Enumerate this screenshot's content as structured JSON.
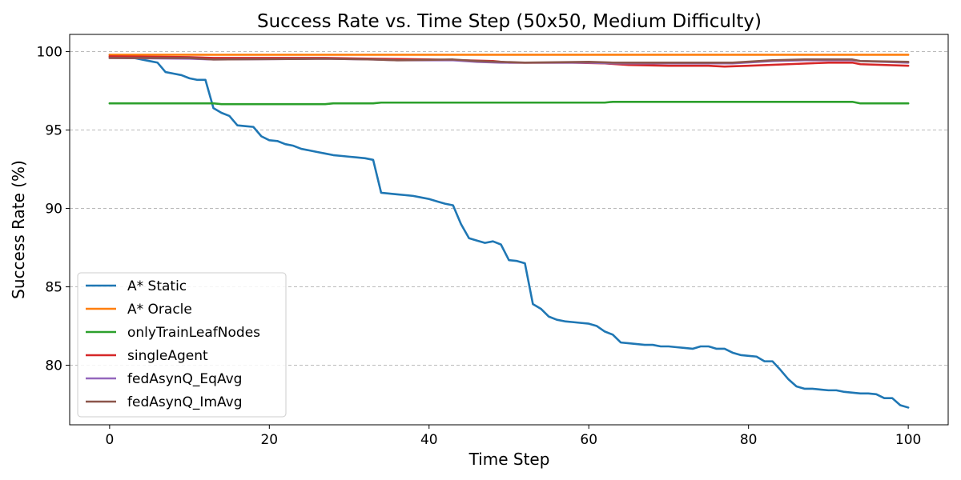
{
  "chart_data": {
    "type": "line",
    "title": "Success Rate vs. Time Step (50x50, Medium Difficulty)",
    "xlabel": "Time Step",
    "ylabel": "Success Rate (%)",
    "xlim": [
      -5,
      105
    ],
    "ylim": [
      76.2,
      101.1
    ],
    "xticks": [
      0,
      20,
      40,
      60,
      80,
      100
    ],
    "yticks": [
      80,
      85,
      90,
      95,
      100
    ],
    "grid": "horizontal dashed",
    "legend_position": "lower-left",
    "series": [
      {
        "name": "A* Static",
        "color": "#1f77b4",
        "x": [
          0,
          1,
          2,
          3,
          4,
          5,
          6,
          7,
          8,
          9,
          10,
          11,
          12,
          13,
          14,
          15,
          16,
          17,
          18,
          19,
          20,
          21,
          22,
          23,
          24,
          25,
          26,
          27,
          28,
          29,
          30,
          31,
          32,
          33,
          34,
          35,
          36,
          37,
          38,
          39,
          40,
          41,
          42,
          43,
          44,
          45,
          46,
          47,
          48,
          49,
          50,
          51,
          52,
          53,
          54,
          55,
          56,
          57,
          58,
          59,
          60,
          61,
          62,
          63,
          64,
          65,
          66,
          67,
          68,
          69,
          70,
          71,
          72,
          73,
          74,
          75,
          76,
          77,
          78,
          79,
          80,
          81,
          82,
          83,
          84,
          85,
          86,
          87,
          88,
          89,
          90,
          91,
          92,
          93,
          94,
          95,
          96,
          97,
          98,
          99,
          100
        ],
        "y": [
          99.8,
          99.7,
          99.6,
          99.6,
          99.5,
          99.4,
          99.3,
          98.7,
          98.6,
          98.5,
          98.3,
          98.2,
          98.2,
          96.4,
          96.1,
          95.9,
          95.3,
          95.25,
          95.2,
          94.6,
          94.35,
          94.3,
          94.1,
          94.0,
          93.8,
          93.7,
          93.6,
          93.5,
          93.4,
          93.35,
          93.3,
          93.25,
          93.2,
          93.1,
          91.0,
          90.95,
          90.9,
          90.85,
          90.8,
          90.7,
          90.6,
          90.45,
          90.3,
          90.2,
          89.0,
          88.1,
          87.95,
          87.8,
          87.9,
          87.7,
          86.7,
          86.65,
          86.5,
          83.9,
          83.6,
          83.1,
          82.9,
          82.8,
          82.75,
          82.7,
          82.65,
          82.5,
          82.15,
          81.95,
          81.45,
          81.4,
          81.35,
          81.3,
          81.3,
          81.2,
          81.2,
          81.15,
          81.1,
          81.05,
          81.2,
          81.2,
          81.05,
          81.05,
          80.8,
          80.65,
          80.6,
          80.55,
          80.25,
          80.25,
          79.7,
          79.1,
          78.65,
          78.5,
          78.5,
          78.45,
          78.4,
          78.4,
          78.3,
          78.25,
          78.2,
          78.2,
          78.15,
          77.9,
          77.9,
          77.45,
          77.3
        ]
      },
      {
        "name": "A* Oracle",
        "color": "#ff7f0e",
        "x": [
          0,
          100
        ],
        "y": [
          99.8,
          99.8
        ]
      },
      {
        "name": "onlyTrainLeafNodes",
        "color": "#2ca02c",
        "x": [
          0,
          13,
          14,
          27,
          28,
          33,
          34,
          62,
          63,
          93,
          94,
          100
        ],
        "y": [
          96.7,
          96.7,
          96.65,
          96.65,
          96.7,
          96.7,
          96.75,
          96.75,
          96.8,
          96.8,
          96.7,
          96.7
        ]
      },
      {
        "name": "singleAgent",
        "color": "#d62728",
        "x": [
          0,
          10,
          13,
          27,
          33,
          40,
          44,
          48,
          50,
          52,
          58,
          62,
          65,
          70,
          75,
          77,
          80,
          85,
          90,
          93,
          94,
          100
        ],
        "y": [
          99.7,
          99.65,
          99.6,
          99.6,
          99.55,
          99.5,
          99.45,
          99.4,
          99.3,
          99.3,
          99.3,
          99.25,
          99.15,
          99.1,
          99.1,
          99.05,
          99.1,
          99.2,
          99.3,
          99.3,
          99.2,
          99.1
        ]
      },
      {
        "name": "fedAsynQ_EqAvg",
        "color": "#9467bd",
        "x": [
          0,
          10,
          13,
          27,
          33,
          36,
          43,
          46,
          49,
          52,
          60,
          63,
          70,
          78,
          83,
          87,
          93,
          94,
          100
        ],
        "y": [
          99.6,
          99.55,
          99.5,
          99.55,
          99.5,
          99.45,
          99.45,
          99.35,
          99.3,
          99.3,
          99.3,
          99.25,
          99.25,
          99.25,
          99.4,
          99.45,
          99.45,
          99.4,
          99.3
        ]
      },
      {
        "name": "fedAsynQ_ImAvg",
        "color": "#8c564b",
        "x": [
          0,
          10,
          13,
          27,
          33,
          36,
          43,
          46,
          49,
          52,
          60,
          63,
          70,
          78,
          83,
          87,
          93,
          94,
          100
        ],
        "y": [
          99.6,
          99.6,
          99.5,
          99.55,
          99.5,
          99.45,
          99.5,
          99.4,
          99.35,
          99.3,
          99.35,
          99.3,
          99.3,
          99.3,
          99.45,
          99.5,
          99.5,
          99.4,
          99.35
        ]
      }
    ]
  }
}
